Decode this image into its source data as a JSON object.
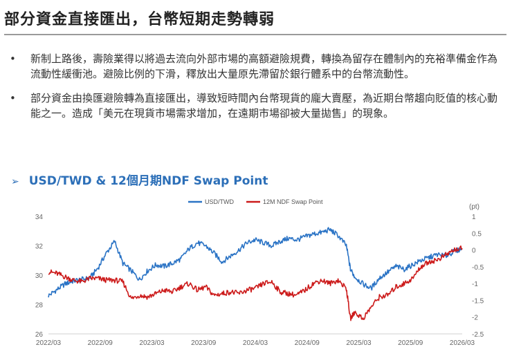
{
  "page": {
    "title": "部分資金直接匯出，台幣短期走勢轉弱"
  },
  "bullets": [
    {
      "marker": "•",
      "text": "新制上路後，壽險業得以將過去流向外部市場的高額避險規費，轉換為留存在體制內的充裕準備金作為流動性緩衝池。避險比例的下滑，釋放出大量原先滯留於銀行體系中的台幣流動性。"
    },
    {
      "marker": "•",
      "text": "部分資金由換匯避險轉為直接匯出，導致短時間內台幣現貨的龐大賣壓，為近期台幣趨向貶值的核心動能之一。造成「美元在現貨市場需求增加，在遠期市場卻被大量拋售」的現象。"
    }
  ],
  "chart_heading": {
    "arrow": "➢",
    "text": "USD/TWD & 12個月期NDF Swap Point"
  },
  "chart_data": {
    "type": "line",
    "title": "USD/TWD & 12個月期NDF Swap Point",
    "x_start": "2022/03",
    "x_end": "2026/03",
    "x_tick_labels": [
      "2022/03",
      "2022/09",
      "2023/03",
      "2023/09",
      "2024/03",
      "2024/09",
      "2025/03",
      "2025/09",
      "2026/03"
    ],
    "left_axis": {
      "ylim": [
        26,
        34
      ],
      "ticks": [
        26,
        28,
        30,
        32,
        34
      ],
      "tick_labels": [
        "26",
        "28",
        "30",
        "32",
        "34"
      ]
    },
    "right_axis": {
      "unit_label": "(pt)",
      "ylim": [
        -2.5,
        1
      ],
      "ticks": [
        1,
        0.5,
        0,
        -0.5,
        -1,
        -1.5,
        -2,
        -2.5
      ],
      "tick_labels": [
        "1",
        "0.5",
        "0",
        "-0.5",
        "-1",
        "-1.5",
        "-2",
        "-2.5"
      ]
    },
    "grid": false,
    "legend_position": "top",
    "series": [
      {
        "name": "USD/TWD",
        "axis": "left",
        "color": "#2a73c5",
        "x": [
          0,
          0.02,
          0.04,
          0.06,
          0.08,
          0.1,
          0.12,
          0.14,
          0.16,
          0.18,
          0.2,
          0.22,
          0.24,
          0.26,
          0.28,
          0.3,
          0.32,
          0.34,
          0.36,
          0.38,
          0.4,
          0.42,
          0.44,
          0.46,
          0.48,
          0.5,
          0.52,
          0.54,
          0.56,
          0.58,
          0.6,
          0.62,
          0.64,
          0.66,
          0.68,
          0.7,
          0.72,
          0.73,
          0.74,
          0.76,
          0.78,
          0.8,
          0.82,
          0.84,
          0.86,
          0.88,
          0.9,
          0.92,
          0.94,
          0.96,
          0.98,
          1.0
        ],
        "values": [
          28.6,
          29.0,
          29.4,
          29.6,
          29.7,
          29.8,
          30.5,
          31.5,
          32.3,
          30.8,
          30.3,
          29.7,
          30.3,
          30.7,
          30.6,
          30.8,
          31.1,
          31.8,
          32.2,
          32.0,
          31.5,
          30.9,
          31.3,
          31.7,
          32.2,
          32.4,
          32.2,
          32.0,
          32.3,
          32.5,
          32.4,
          32.6,
          32.8,
          32.9,
          33.1,
          32.7,
          32.0,
          30.4,
          29.9,
          29.4,
          29.1,
          29.8,
          30.2,
          30.6,
          30.4,
          30.7,
          31.0,
          31.2,
          31.4,
          31.3,
          31.6,
          31.8
        ]
      },
      {
        "name": "12M NDF Swap Point",
        "axis": "right",
        "color": "#cc1a1a",
        "x": [
          0,
          0.02,
          0.04,
          0.06,
          0.08,
          0.1,
          0.12,
          0.14,
          0.16,
          0.18,
          0.2,
          0.22,
          0.24,
          0.26,
          0.28,
          0.3,
          0.32,
          0.34,
          0.36,
          0.38,
          0.4,
          0.42,
          0.44,
          0.46,
          0.48,
          0.5,
          0.52,
          0.54,
          0.56,
          0.58,
          0.6,
          0.62,
          0.64,
          0.66,
          0.68,
          0.7,
          0.72,
          0.73,
          0.74,
          0.76,
          0.78,
          0.8,
          0.82,
          0.84,
          0.86,
          0.88,
          0.9,
          0.92,
          0.94,
          0.96,
          0.98,
          1.0
        ],
        "values": [
          -0.65,
          -0.7,
          -0.8,
          -0.9,
          -0.95,
          -0.85,
          -0.85,
          -0.9,
          -0.9,
          -0.95,
          -1.45,
          -1.35,
          -1.4,
          -1.3,
          -1.2,
          -1.25,
          -1.1,
          -1.0,
          -1.2,
          -1.1,
          -1.35,
          -1.3,
          -1.25,
          -1.3,
          -1.2,
          -1.15,
          -1.0,
          -0.95,
          -1.25,
          -1.3,
          -1.35,
          -1.2,
          -1.0,
          -0.9,
          -1.0,
          -0.9,
          -1.15,
          -2.05,
          -1.85,
          -2.05,
          -1.7,
          -1.4,
          -1.35,
          -1.1,
          -1.0,
          -0.85,
          -0.5,
          -0.35,
          -0.3,
          -0.15,
          0.0,
          0.05
        ]
      }
    ]
  }
}
